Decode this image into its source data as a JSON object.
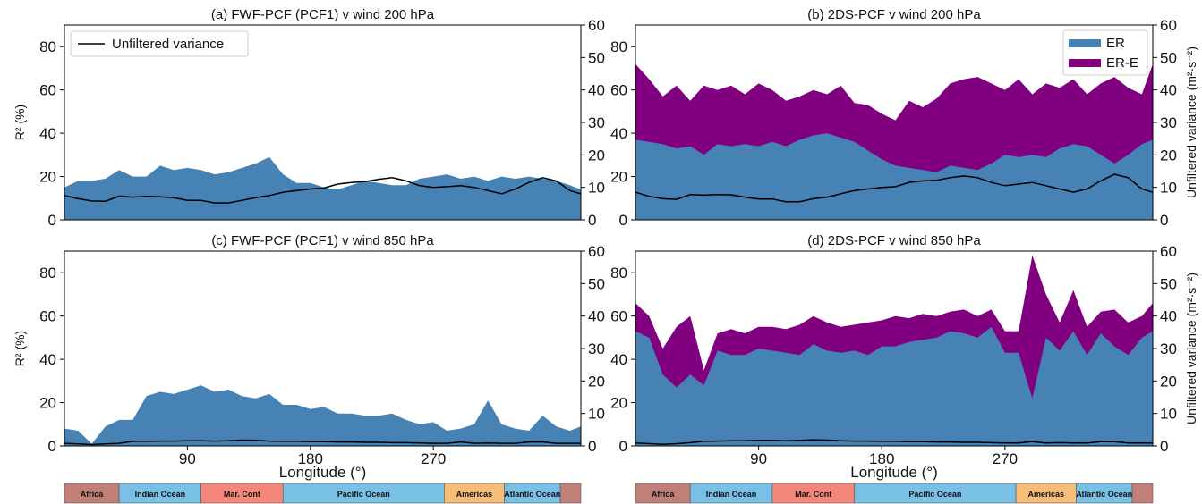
{
  "regions": [
    {
      "label": "Africa",
      "start": 0,
      "end": 40,
      "color": "#c17f78"
    },
    {
      "label": "Indian Ocean",
      "start": 40,
      "end": 100,
      "color": "#79c0e6"
    },
    {
      "label": "Mar. Cont",
      "start": 100,
      "end": 160,
      "color": "#f4877a"
    },
    {
      "label": "Pacific Ocean",
      "start": 160,
      "end": 278,
      "color": "#79c0e6"
    },
    {
      "label": "Americas",
      "start": 278,
      "end": 322,
      "color": "#f6bc78"
    },
    {
      "label": "Atlantic Ocean",
      "start": 322,
      "end": 363,
      "color": "#79c0e6"
    },
    {
      "label": "",
      "start": 363,
      "end": 378,
      "color": "#c17f78"
    }
  ],
  "chart_data": [
    {
      "id": "a",
      "type": "area",
      "title": "(a) FWF-PCF (PCF1) v wind 200 hPa",
      "ylabel": "R² (%)",
      "y2label": "",
      "xlabel": "",
      "xlim": [
        0,
        378
      ],
      "ylim": [
        0,
        90
      ],
      "y2lim": [
        0,
        60
      ],
      "xticks": [],
      "yticks": [
        0,
        20,
        40,
        60,
        80
      ],
      "y2ticks": [
        0,
        10,
        20,
        30,
        40,
        50,
        60
      ],
      "legend": {
        "position": "top-left",
        "entries": [
          {
            "label": "Unfiltered variance",
            "style": "line"
          }
        ]
      },
      "x": [
        0,
        10,
        20,
        30,
        40,
        50,
        60,
        70,
        80,
        90,
        100,
        110,
        120,
        130,
        140,
        150,
        160,
        170,
        180,
        190,
        200,
        210,
        220,
        230,
        240,
        250,
        260,
        270,
        280,
        290,
        300,
        310,
        320,
        330,
        340,
        350,
        360,
        370,
        378
      ],
      "series": [
        {
          "name": "",
          "kind": "area",
          "color": "#4682b4",
          "values": [
            15,
            18,
            18,
            19,
            23,
            20,
            20,
            25,
            23,
            24,
            23,
            21,
            22,
            24,
            26,
            29,
            21,
            17,
            17,
            15,
            14,
            16,
            18,
            17,
            16,
            16,
            19,
            20,
            21,
            19,
            20,
            18,
            20,
            19,
            20,
            19,
            18,
            16,
            14
          ]
        }
      ],
      "line": {
        "name": "Unfiltered variance",
        "axis": "right",
        "color": "#000000",
        "values": [
          7.5,
          6.5,
          5.8,
          5.7,
          7.3,
          7.0,
          7.2,
          7.1,
          6.8,
          6.0,
          6.0,
          5.2,
          5.2,
          6.0,
          6.8,
          7.5,
          8.5,
          9.0,
          9.5,
          9.8,
          11.0,
          11.5,
          11.8,
          12.5,
          13.0,
          12.0,
          10.5,
          10.0,
          10.2,
          10.5,
          10.0,
          9.0,
          8.0,
          9.5,
          11.5,
          13.0,
          12.0,
          9.0,
          8.0
        ]
      }
    },
    {
      "id": "b",
      "type": "area",
      "title": "(b) 2DS-PCF v wind 200 hPa",
      "ylabel": "",
      "y2label": "Unfiltered variance (m²·s⁻²)",
      "xlabel": "",
      "xlim": [
        0,
        378
      ],
      "ylim": [
        0,
        90
      ],
      "y2lim": [
        0,
        60
      ],
      "xticks": [],
      "yticks": [
        0,
        20,
        40,
        60,
        80
      ],
      "y2ticks": [
        0,
        10,
        20,
        30,
        40,
        50,
        60
      ],
      "legend": {
        "position": "top-right",
        "entries": [
          {
            "label": "ER",
            "style": "patch",
            "color": "#4682b4"
          },
          {
            "label": "ER-E",
            "style": "patch",
            "color": "#800080"
          }
        ]
      },
      "x": [
        0,
        10,
        20,
        30,
        40,
        50,
        60,
        70,
        80,
        90,
        100,
        110,
        120,
        130,
        140,
        150,
        160,
        170,
        180,
        190,
        200,
        210,
        220,
        230,
        240,
        250,
        260,
        270,
        280,
        290,
        300,
        310,
        320,
        330,
        340,
        350,
        360,
        370,
        378
      ],
      "series": [
        {
          "name": "ER",
          "kind": "area",
          "color": "#4682b4",
          "values": [
            37,
            36,
            35,
            33,
            34,
            30,
            35,
            34,
            35,
            34,
            36,
            34,
            37,
            39,
            40,
            38,
            36,
            32,
            28,
            25,
            24,
            23,
            22,
            25,
            24,
            23,
            26,
            30,
            29,
            30,
            29,
            33,
            35,
            34,
            30,
            26,
            30,
            35,
            37
          ]
        },
        {
          "name": "ER-E",
          "kind": "area",
          "color": "#800080",
          "values": [
            72,
            65,
            57,
            62,
            55,
            62,
            60,
            62,
            58,
            63,
            60,
            55,
            57,
            60,
            58,
            62,
            54,
            53,
            49,
            46,
            55,
            52,
            56,
            63,
            65,
            66,
            63,
            60,
            65,
            58,
            63,
            61,
            65,
            58,
            63,
            66,
            61,
            58,
            72
          ]
        }
      ],
      "line": {
        "name": "",
        "axis": "right",
        "color": "#000000",
        "values": [
          8.5,
          7.2,
          6.5,
          6.3,
          7.8,
          7.6,
          7.8,
          7.7,
          7.0,
          6.4,
          6.4,
          5.6,
          5.6,
          6.5,
          7.0,
          8.0,
          9.0,
          9.5,
          10.0,
          10.2,
          11.5,
          12.0,
          12.2,
          13.0,
          13.5,
          13.0,
          11.5,
          10.5,
          11.0,
          11.5,
          10.5,
          9.5,
          8.5,
          9.5,
          12.0,
          14.0,
          13.0,
          9.5,
          8.5
        ]
      }
    },
    {
      "id": "c",
      "type": "area",
      "title": "(c) FWF-PCF (PCF1) v wind 850 hPa",
      "ylabel": "R² (%)",
      "y2label": "",
      "xlabel": "Longitude (°)",
      "xlim": [
        0,
        378
      ],
      "ylim": [
        0,
        90
      ],
      "y2lim": [
        0,
        60
      ],
      "xticks": [
        90,
        180,
        270
      ],
      "yticks": [
        0,
        20,
        40,
        60,
        80
      ],
      "y2ticks": [
        0,
        10,
        20,
        30,
        40,
        50,
        60
      ],
      "legend": null,
      "x": [
        0,
        10,
        20,
        30,
        40,
        50,
        60,
        70,
        80,
        90,
        100,
        110,
        120,
        130,
        140,
        150,
        160,
        170,
        180,
        190,
        200,
        210,
        220,
        230,
        240,
        250,
        260,
        270,
        280,
        290,
        300,
        310,
        320,
        330,
        340,
        350,
        360,
        370,
        378
      ],
      "series": [
        {
          "name": "",
          "kind": "area",
          "color": "#4682b4",
          "values": [
            8,
            7,
            1,
            9,
            12,
            12,
            23,
            25,
            24,
            26,
            28,
            25,
            26,
            23,
            22,
            24,
            19,
            19,
            17,
            18,
            15,
            15,
            14,
            14,
            15,
            12,
            10,
            11,
            7,
            8,
            10,
            21,
            10,
            8,
            7,
            14,
            9,
            7,
            9
          ]
        }
      ],
      "line": {
        "name": "",
        "axis": "right",
        "color": "#000000",
        "values": [
          0.8,
          0.6,
          0.4,
          0.6,
          0.8,
          1.4,
          1.4,
          1.5,
          1.5,
          1.6,
          1.6,
          1.5,
          1.6,
          1.8,
          1.7,
          1.5,
          1.4,
          1.4,
          1.3,
          1.3,
          1.2,
          1.2,
          1.1,
          1.1,
          1.0,
          1.0,
          0.9,
          0.8,
          0.8,
          1.2,
          0.8,
          0.9,
          0.8,
          0.8,
          1.2,
          1.2,
          0.8,
          0.8,
          0.8
        ]
      }
    },
    {
      "id": "d",
      "type": "area",
      "title": "(d) 2DS-PCF v wind 850 hPa",
      "ylabel": "",
      "y2label": "Unfiltered variance (m²·s⁻²)",
      "xlabel": "Longitude (°)",
      "xlim": [
        0,
        378
      ],
      "ylim": [
        0,
        90
      ],
      "y2lim": [
        0,
        60
      ],
      "xticks": [
        90,
        180,
        270
      ],
      "yticks": [
        0,
        20,
        40,
        60,
        80
      ],
      "y2ticks": [
        0,
        10,
        20,
        30,
        40,
        50,
        60
      ],
      "legend": null,
      "x": [
        0,
        10,
        20,
        30,
        40,
        50,
        60,
        70,
        80,
        90,
        100,
        110,
        120,
        130,
        140,
        150,
        160,
        170,
        180,
        190,
        200,
        210,
        220,
        230,
        240,
        250,
        260,
        270,
        280,
        290,
        300,
        310,
        320,
        330,
        340,
        350,
        360,
        370,
        378
      ],
      "series": [
        {
          "name": "ER",
          "kind": "area",
          "color": "#4682b4",
          "values": [
            53,
            50,
            33,
            27,
            33,
            28,
            44,
            42,
            42,
            45,
            44,
            43,
            42,
            47,
            44,
            43,
            44,
            42,
            46,
            46,
            48,
            49,
            50,
            53,
            52,
            50,
            55,
            43,
            43,
            22,
            50,
            44,
            53,
            42,
            52,
            46,
            42,
            50,
            53
          ]
        },
        {
          "name": "ER-E",
          "kind": "area",
          "color": "#800080",
          "values": [
            66,
            60,
            45,
            55,
            60,
            35,
            52,
            54,
            52,
            55,
            55,
            54,
            56,
            60,
            57,
            55,
            56,
            57,
            58,
            60,
            59,
            61,
            60,
            62,
            63,
            60,
            63,
            53,
            53,
            88,
            70,
            57,
            72,
            55,
            62,
            63,
            57,
            60,
            66
          ]
        }
      ],
      "line": {
        "name": "",
        "axis": "right",
        "color": "#000000",
        "values": [
          0.9,
          0.7,
          0.5,
          0.7,
          1.0,
          1.4,
          1.5,
          1.6,
          1.6,
          1.7,
          1.7,
          1.6,
          1.7,
          1.9,
          1.8,
          1.6,
          1.5,
          1.5,
          1.4,
          1.4,
          1.3,
          1.3,
          1.2,
          1.2,
          1.1,
          1.1,
          1.0,
          0.9,
          0.9,
          1.3,
          0.9,
          1.0,
          0.9,
          0.9,
          1.3,
          1.3,
          0.9,
          0.9,
          0.9
        ]
      }
    }
  ]
}
